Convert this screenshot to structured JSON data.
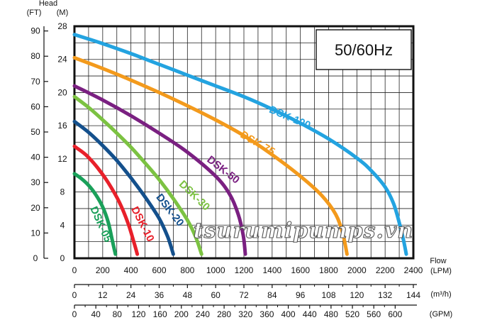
{
  "chart_data": {
    "type": "line",
    "title": "",
    "frequency_label": "50/60Hz",
    "y_axis_caption": "Head",
    "y_units": {
      "ft": "(FT)",
      "m": "(M)"
    },
    "x_axis_caption": "Flow",
    "x_units": {
      "lpm": "(LPM)",
      "m3h": "(m³/h)",
      "gpm": "(GPM)"
    },
    "xlim": [
      0,
      2400
    ],
    "ylim": [
      0,
      28
    ],
    "ft_ticks": [
      "0",
      "10",
      "20",
      "30",
      "40",
      "50",
      "60",
      "70",
      "80",
      "90"
    ],
    "m_ticks": [
      "0",
      "4",
      "8",
      "12",
      "16",
      "20",
      "24",
      "28"
    ],
    "lpm_ticks": [
      "0",
      "200",
      "400",
      "600",
      "800",
      "1000",
      "1200",
      "1400",
      "1600",
      "1800",
      "2000",
      "2200",
      "2400"
    ],
    "m3h_ticks": [
      "0",
      "12",
      "24",
      "36",
      "48",
      "60",
      "72",
      "84",
      "96",
      "108",
      "120",
      "132",
      "144"
    ],
    "gpm_ticks": [
      "0",
      "40",
      "80",
      "120",
      "160",
      "200",
      "240",
      "280",
      "320",
      "360",
      "400",
      "440",
      "480",
      "520",
      "560",
      "600"
    ],
    "grid": true,
    "watermark": "tsurumipumps.vn",
    "series": [
      {
        "name": "DSK-05",
        "color": "#1aa05a",
        "points": [
          [
            0,
            10.2
          ],
          [
            50,
            9.6
          ],
          [
            100,
            8.8
          ],
          [
            150,
            7.7
          ],
          [
            200,
            6.2
          ],
          [
            240,
            4.3
          ],
          [
            270,
            2.0
          ],
          [
            290,
            0.5
          ]
        ]
      },
      {
        "name": "DSK-10",
        "color": "#e8202a",
        "points": [
          [
            0,
            13.5
          ],
          [
            80,
            12.5
          ],
          [
            160,
            11.0
          ],
          [
            240,
            9.1
          ],
          [
            320,
            6.7
          ],
          [
            380,
            4.2
          ],
          [
            420,
            2.0
          ],
          [
            445,
            0.5
          ]
        ]
      },
      {
        "name": "DSK-20",
        "color": "#14508c",
        "points": [
          [
            0,
            16.5
          ],
          [
            100,
            15.2
          ],
          [
            200,
            13.6
          ],
          [
            300,
            11.8
          ],
          [
            400,
            9.7
          ],
          [
            500,
            7.4
          ],
          [
            600,
            4.8
          ],
          [
            660,
            2.6
          ],
          [
            700,
            0.5
          ]
        ]
      },
      {
        "name": "DSK-30",
        "color": "#7cc242",
        "points": [
          [
            0,
            19.5
          ],
          [
            100,
            18.2
          ],
          [
            200,
            16.7
          ],
          [
            300,
            15.1
          ],
          [
            400,
            13.4
          ],
          [
            500,
            11.5
          ],
          [
            600,
            9.5
          ],
          [
            700,
            7.2
          ],
          [
            800,
            4.6
          ],
          [
            860,
            2.5
          ],
          [
            900,
            0.5
          ]
        ]
      },
      {
        "name": "DSK-50",
        "color": "#7a2081",
        "points": [
          [
            0,
            20.8
          ],
          [
            200,
            19.1
          ],
          [
            400,
            17.2
          ],
          [
            600,
            15.1
          ],
          [
            800,
            12.8
          ],
          [
            1000,
            9.9
          ],
          [
            1100,
            7.7
          ],
          [
            1160,
            5.3
          ],
          [
            1195,
            2.8
          ],
          [
            1210,
            0.5
          ]
        ]
      },
      {
        "name": "DSK-75",
        "color": "#f39a1c",
        "points": [
          [
            0,
            24.2
          ],
          [
            200,
            22.9
          ],
          [
            400,
            21.5
          ],
          [
            600,
            20.0
          ],
          [
            800,
            18.4
          ],
          [
            1000,
            16.7
          ],
          [
            1200,
            14.8
          ],
          [
            1400,
            12.5
          ],
          [
            1600,
            9.9
          ],
          [
            1750,
            7.6
          ],
          [
            1850,
            5.3
          ],
          [
            1900,
            3.0
          ],
          [
            1930,
            0.5
          ]
        ]
      },
      {
        "name": "DSK-100",
        "color": "#23a3e0",
        "points": [
          [
            0,
            27.0
          ],
          [
            200,
            25.9
          ],
          [
            400,
            24.7
          ],
          [
            600,
            23.4
          ],
          [
            800,
            22.1
          ],
          [
            1000,
            20.8
          ],
          [
            1200,
            19.5
          ],
          [
            1400,
            18.0
          ],
          [
            1600,
            16.3
          ],
          [
            1800,
            14.4
          ],
          [
            2000,
            12.1
          ],
          [
            2100,
            10.6
          ],
          [
            2200,
            8.6
          ],
          [
            2260,
            6.6
          ],
          [
            2300,
            4.3
          ],
          [
            2330,
            2.2
          ],
          [
            2350,
            0.5
          ]
        ]
      }
    ]
  }
}
